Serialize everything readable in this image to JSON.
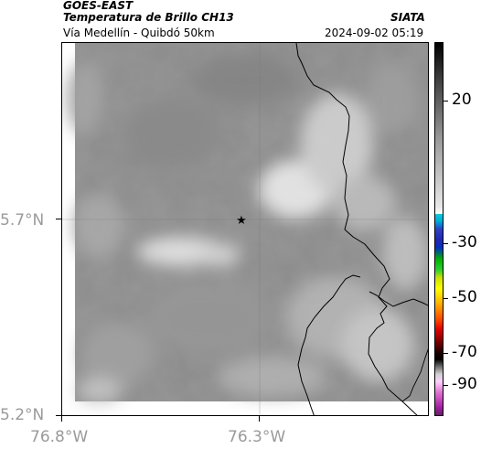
{
  "header": {
    "satellite": "GOES-EAST",
    "product": "Temperatura de Brillo CH13",
    "region": "Vía Medellín - Quibdó 50km",
    "source": "SIATA",
    "timestamp": "2024-09-02 05:19"
  },
  "map": {
    "lat_ticks": [
      "5.7°N",
      "5.2°N"
    ],
    "lon_ticks": [
      "76.8°W",
      "76.3°W"
    ],
    "marker_icon": "star-icon",
    "gridlines": true
  },
  "colorbar": {
    "labels": [
      "20",
      "-30",
      "-50",
      "-70",
      "-90"
    ],
    "units_hint": "°C"
  }
}
